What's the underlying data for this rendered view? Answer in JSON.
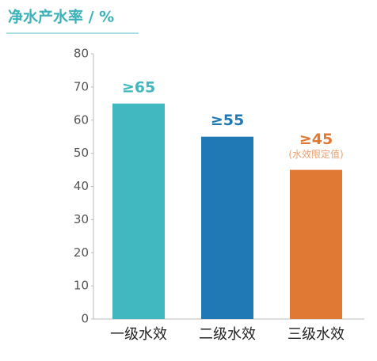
{
  "chart_data": {
    "type": "bar",
    "title": "净水产水率 / %",
    "categories": [
      "一级水效",
      "二级水效",
      "三级水效"
    ],
    "values": [
      65,
      55,
      45
    ],
    "value_labels": [
      "≥65",
      "≥55",
      "≥45"
    ],
    "colors": [
      "#41b7bf",
      "#2079b5",
      "#e07934"
    ],
    "annotations": [
      {
        "category": 2,
        "text": "(水效限定值)"
      }
    ],
    "ylim": [
      0,
      80
    ],
    "yticks": [
      0,
      10,
      20,
      30,
      40,
      50,
      60,
      70,
      80
    ],
    "grid": false
  }
}
